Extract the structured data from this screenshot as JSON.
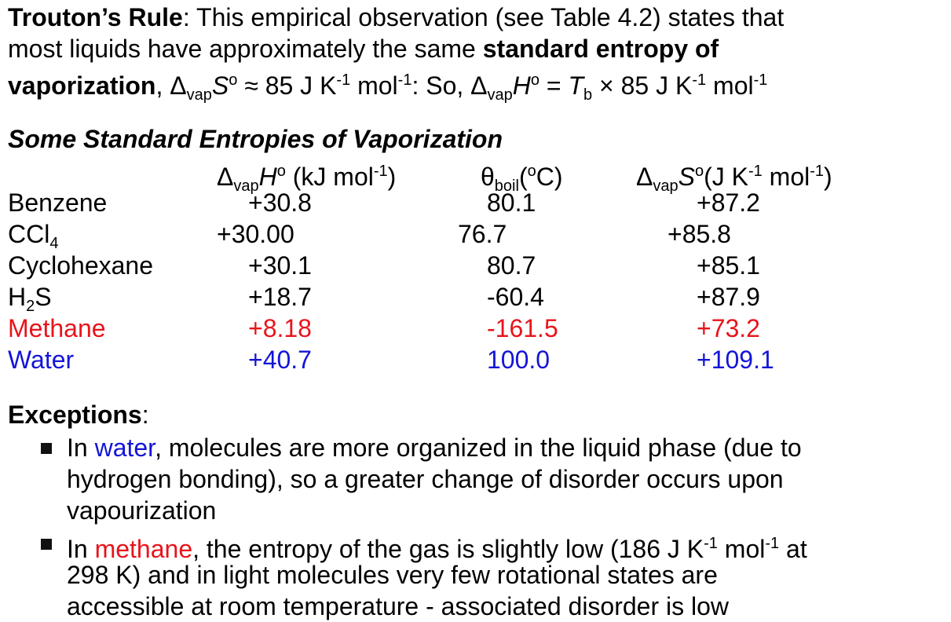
{
  "intro": {
    "runs": [
      "Trouton’s Rule",
      ": This empirical observation (see Table 4.2) states that",
      "most liquids have approximately the same ",
      "standard entropy of",
      "vaporization",
      ", Δ",
      "vap",
      "S",
      "o",
      " ≈ 85 J K",
      "-1",
      " mol",
      "-1",
      ": So, Δ",
      "vap",
      "H",
      "o",
      " = ",
      "T",
      "b",
      " × 85 J K",
      "-1",
      " mol",
      "-1"
    ]
  },
  "table": {
    "title": "Some Standard Entropies of Vaporization",
    "header": [
      [
        "Δ",
        "vap",
        "H",
        "o",
        " (kJ mol",
        "-1",
        ")"
      ],
      [
        "θ",
        "boil",
        "(",
        "o",
        "C)"
      ],
      [
        "Δ",
        "vap",
        "S",
        "o",
        "(J K",
        "-1",
        " mol",
        "-1",
        ")"
      ]
    ],
    "rows": [
      {
        "name": [
          "Benzene"
        ],
        "cells": [
          "+30.8",
          "80.1",
          "+87.2"
        ]
      },
      {
        "name": [
          "CCl",
          "4"
        ],
        "cells": [
          "+30.00",
          "76.7",
          "+85.8"
        ]
      },
      {
        "name": [
          "Cyclohexane"
        ],
        "cells": [
          "+30.1",
          "80.7",
          "+85.1"
        ]
      },
      {
        "name": [
          "H",
          "2",
          "S"
        ],
        "cells": [
          "+18.7",
          "-60.4",
          "+87.9"
        ]
      },
      {
        "name": [
          "Methane"
        ],
        "cells": [
          "+8.18",
          "-161.5",
          "+73.2"
        ]
      },
      {
        "name": [
          "Water"
        ],
        "cells": [
          "+40.7",
          "100.0",
          "+109.1"
        ]
      }
    ]
  },
  "exceptions": {
    "heading": "Exceptions",
    "colon": ":",
    "bullets": [
      [
        "In ",
        "water",
        ", molecules are more organized in the liquid phase (due to",
        "hydrogen bonding), so a greater change of disorder occurs upon",
        "vapourization"
      ],
      [
        "In ",
        "methane",
        ", the entropy of the gas is slightly low (186 J K",
        "-1",
        " mol",
        "-1",
        " at",
        "298 K) and in light molecules very few rotational states are",
        "accessible at room temperature - associated disorder is low"
      ]
    ]
  }
}
